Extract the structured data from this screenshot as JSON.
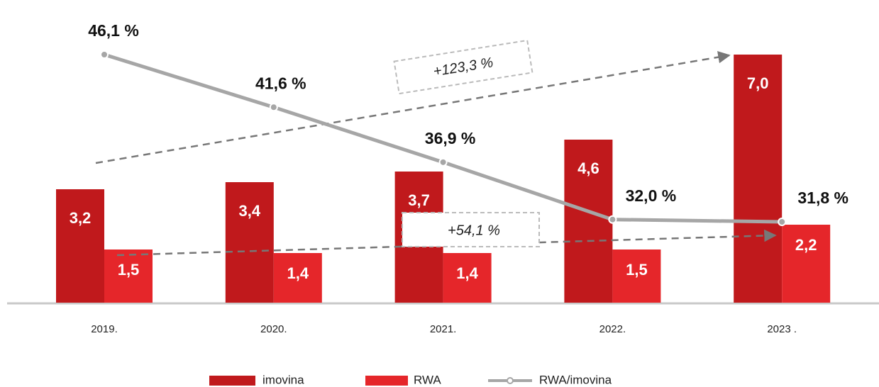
{
  "chart_data": {
    "type": "bar",
    "categories": [
      "2019.",
      "2020.",
      "2021.",
      "2022.",
      "2023 ."
    ],
    "series": [
      {
        "name": "imovina",
        "color": "#c0191c",
        "values": [
          3.2,
          3.4,
          3.7,
          4.6,
          7.0
        ],
        "value_labels": [
          "3,2",
          "3,4",
          "3,7",
          "4,6",
          "7,0"
        ]
      },
      {
        "name": "RWA",
        "color": "#e5262a",
        "values": [
          1.5,
          1.4,
          1.4,
          1.5,
          2.2
        ],
        "value_labels": [
          "1,5",
          "1,4",
          "1,4",
          "1,5",
          "2,2"
        ]
      },
      {
        "name": "RWA/imovina",
        "type": "line",
        "axis": "y2",
        "color": "#a6a6a6",
        "values": [
          46.1,
          41.6,
          36.9,
          32.0,
          31.8
        ],
        "value_labels": [
          "46,1 %",
          "41,6 %",
          "36,9 %",
          "32,0 %",
          "31,8 %"
        ]
      }
    ],
    "annotations": [
      "+123,3 %",
      "+54,1 %"
    ]
  }
}
